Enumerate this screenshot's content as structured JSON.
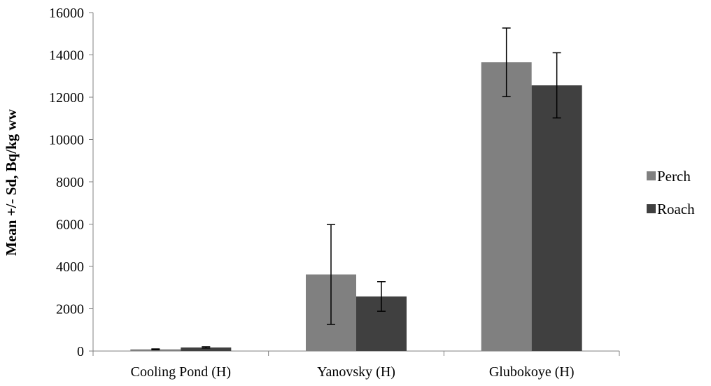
{
  "chart_data": {
    "type": "bar",
    "title": "",
    "xlabel": "",
    "ylabel": "Mean +/- Sd, Bq/kg ww",
    "ylim": [
      0,
      16000
    ],
    "yticks": [
      0,
      2000,
      4000,
      6000,
      8000,
      10000,
      12000,
      14000,
      16000
    ],
    "categories": [
      "Cooling Pond (H)",
      "Yanovsky (H)",
      "Glubokoye (H)"
    ],
    "series": [
      {
        "name": "Perch",
        "color": "#808080",
        "values": [
          80,
          3620,
          13650
        ],
        "errors": [
          20,
          2360,
          1620
        ]
      },
      {
        "name": "Roach",
        "color": "#404040",
        "values": [
          170,
          2580,
          12560
        ],
        "errors": [
          30,
          700,
          1540
        ]
      }
    ],
    "grid": false,
    "legend": "right"
  }
}
